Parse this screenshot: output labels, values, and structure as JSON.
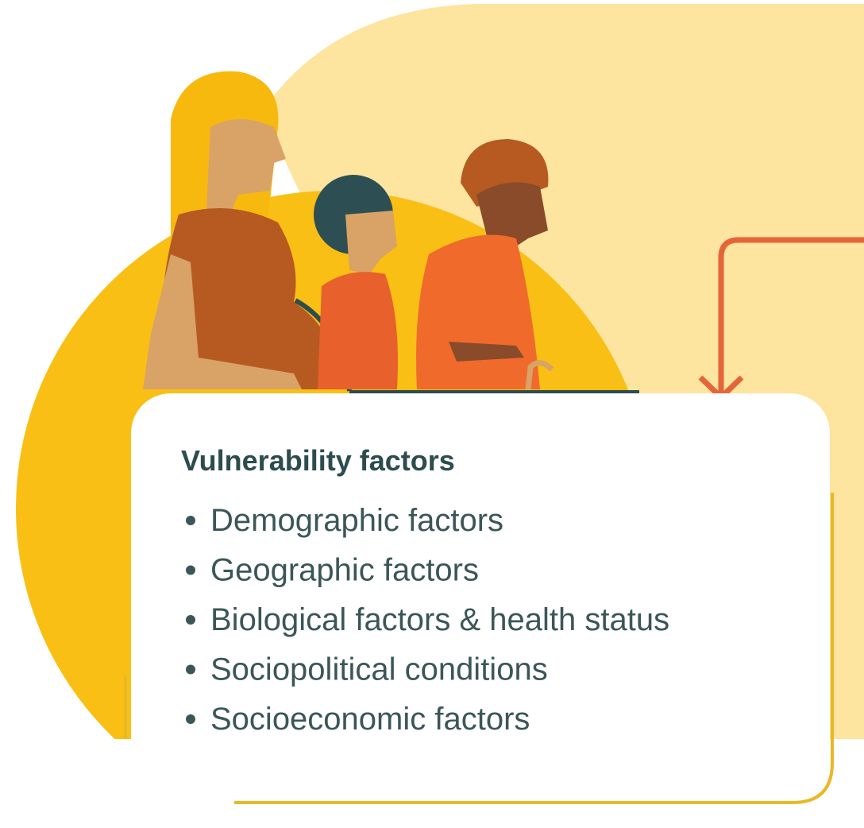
{
  "title": "Vulnerability factors",
  "items": [
    "Demographic factors",
    "Geographic factors",
    "Biological factors & health status",
    "Sociopolitical conditions",
    "Socioeconomic factors"
  ]
}
